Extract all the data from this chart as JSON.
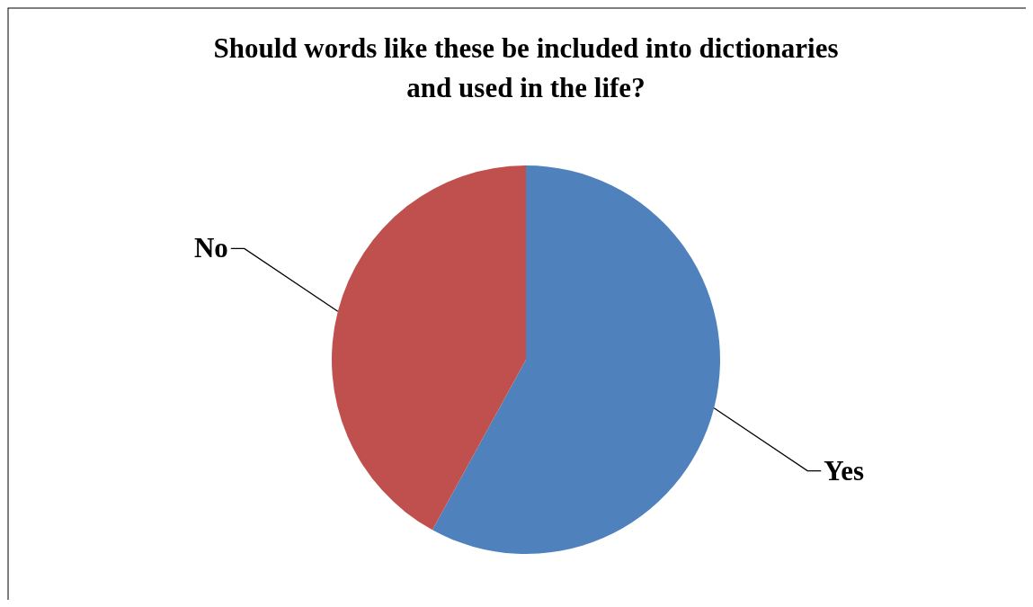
{
  "chart_data": {
    "type": "pie",
    "title": "Should words like these be included into dictionaries\nand used in the life?",
    "categories": [
      "Yes",
      "No"
    ],
    "values": [
      58,
      42
    ],
    "colors": [
      "#4f81bd",
      "#c0504d"
    ]
  }
}
